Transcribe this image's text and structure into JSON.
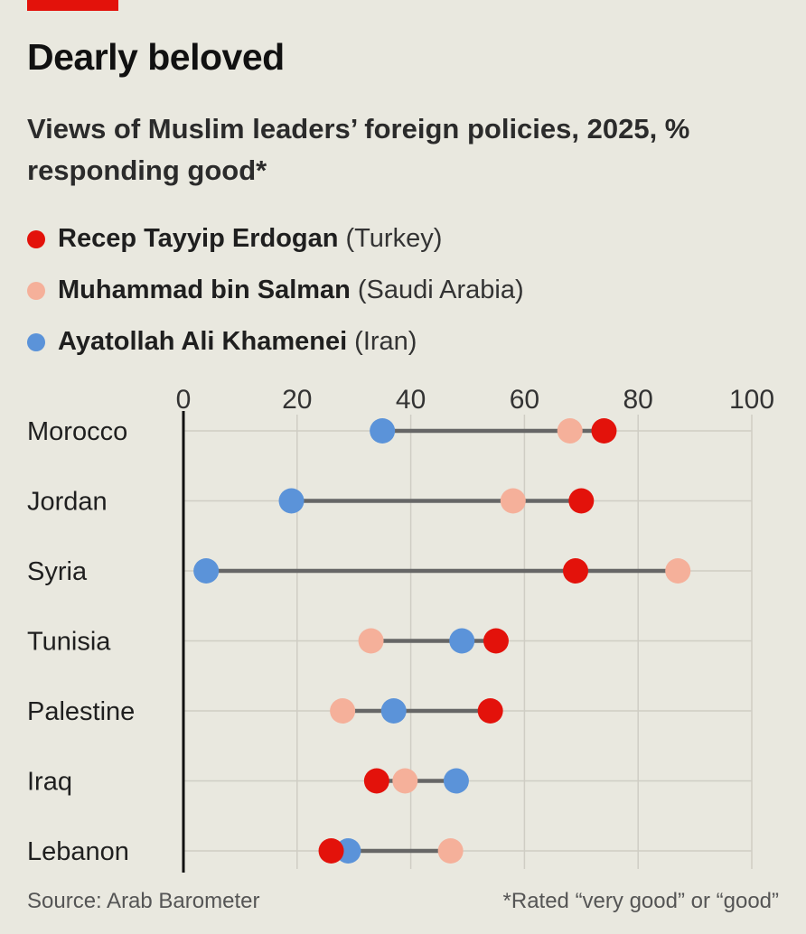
{
  "title": "Dearly beloved",
  "subtitle": "Views of Muslim leaders’ foreign policies, 2025, % responding good*",
  "source": "Source: Arab Barometer",
  "footnote": "*Rated “very good” or “good”",
  "colors": {
    "erdogan": "#e3120b",
    "salman": "#f5b09a",
    "khamenei": "#5b93d9",
    "background": "#e9e8df",
    "connector": "#666666",
    "grid": "#cfcdc4",
    "brand": "#e3120b"
  },
  "legend": [
    {
      "name": "Recep Tayyip Erdogan",
      "country": "(Turkey)",
      "color": "#e3120b"
    },
    {
      "name": "Muhammad bin Salman",
      "country": "(Saudi Arabia)",
      "color": "#f5b09a"
    },
    {
      "name": "Ayatollah Ali Khamenei",
      "country": "(Iran)",
      "color": "#5b93d9"
    }
  ],
  "chart_data": {
    "type": "dot-range",
    "xlim": [
      0,
      100
    ],
    "xticks": [
      "0",
      "20",
      "40",
      "60",
      "80",
      "100"
    ],
    "grid": true,
    "categories": [
      "Morocco",
      "Jordan",
      "Syria",
      "Tunisia",
      "Palestine",
      "Iraq",
      "Lebanon"
    ],
    "series": [
      {
        "name": "Recep Tayyip Erdogan (Turkey)",
        "color": "#e3120b",
        "values": [
          74,
          70,
          69,
          55,
          54,
          34,
          26
        ]
      },
      {
        "name": "Muhammad bin Salman (Saudi Arabia)",
        "color": "#f5b09a",
        "values": [
          68,
          58,
          87,
          33,
          28,
          39,
          47
        ]
      },
      {
        "name": "Ayatollah Ali Khamenei (Iran)",
        "color": "#5b93d9",
        "values": [
          35,
          19,
          4,
          49,
          37,
          48,
          29
        ]
      }
    ]
  }
}
